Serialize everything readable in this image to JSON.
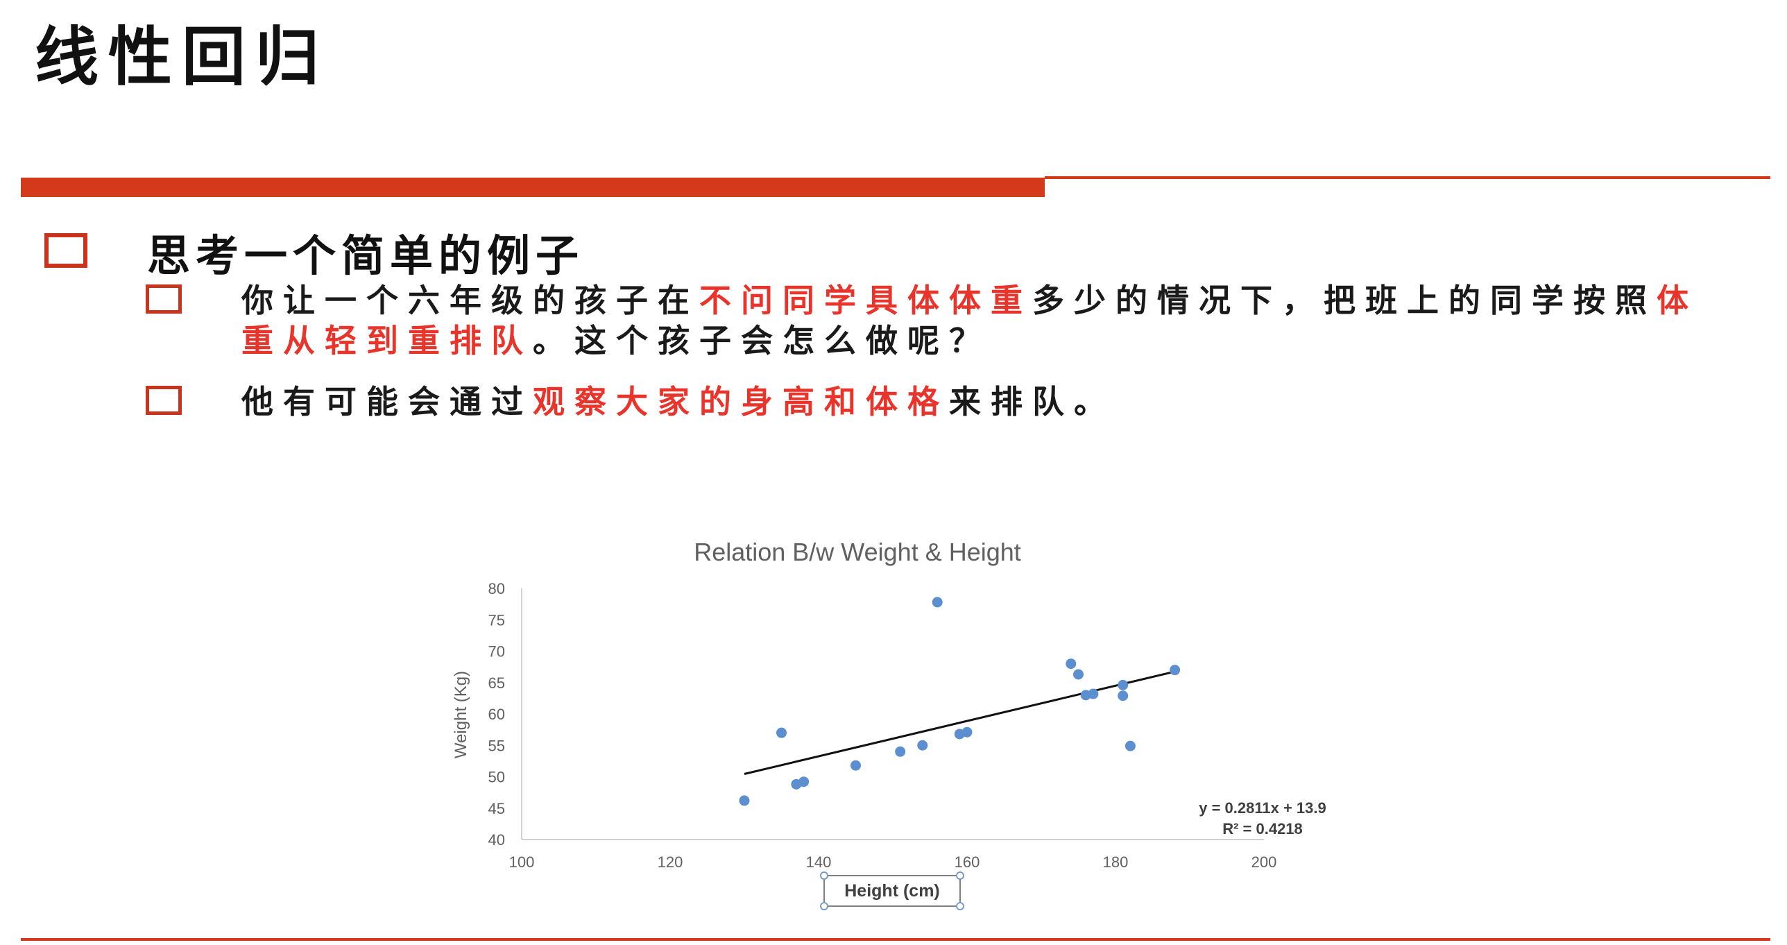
{
  "slide": {
    "title": "线性回归",
    "heading": "思考一个简单的例子",
    "bullet1": {
      "seg1": "你让一个六年级的孩子在",
      "seg2": "不问同学具体体重",
      "seg3": "多少的情况下，把班上的同学按照",
      "seg4": "体重从轻到重排队",
      "seg5": "。这个孩子会怎么做呢？"
    },
    "bullet2": {
      "seg1": "他有可能会通过",
      "seg2": "观察大家的身高和体格",
      "seg3": "来排队。"
    },
    "accent_color": "#d4391c",
    "highlight_color": "#e8342b"
  },
  "chart_data": {
    "type": "scatter",
    "title": "Relation B/w Weight & Height",
    "xlabel": "Height (cm)",
    "ylabel": "Weight (Kg)",
    "xlim": [
      100,
      200
    ],
    "ylim": [
      40,
      80
    ],
    "xticks": [
      "100",
      "120",
      "140",
      "160",
      "180",
      "200"
    ],
    "yticks": [
      "40",
      "45",
      "50",
      "55",
      "60",
      "65",
      "70",
      "75",
      "80"
    ],
    "grid": false,
    "point_color": "#5b8fd0",
    "points": [
      {
        "x": 130,
        "y": 46.2
      },
      {
        "x": 135,
        "y": 57.0
      },
      {
        "x": 137,
        "y": 48.8
      },
      {
        "x": 138,
        "y": 49.2
      },
      {
        "x": 145,
        "y": 51.8
      },
      {
        "x": 151,
        "y": 54.0
      },
      {
        "x": 154,
        "y": 55.0
      },
      {
        "x": 156,
        "y": 77.8
      },
      {
        "x": 159,
        "y": 56.8
      },
      {
        "x": 160,
        "y": 57.1
      },
      {
        "x": 174,
        "y": 68.0
      },
      {
        "x": 175,
        "y": 66.3
      },
      {
        "x": 176,
        "y": 63.0
      },
      {
        "x": 177,
        "y": 63.2
      },
      {
        "x": 181,
        "y": 64.6
      },
      {
        "x": 181,
        "y": 62.9
      },
      {
        "x": 182,
        "y": 54.9
      },
      {
        "x": 188,
        "y": 67.0
      }
    ],
    "trendline": {
      "slope": 0.2811,
      "intercept": 13.9,
      "x_range": [
        130,
        188
      ],
      "equation": "y = 0.2811x + 13.9",
      "r_squared": "R² = 0.4218"
    }
  }
}
